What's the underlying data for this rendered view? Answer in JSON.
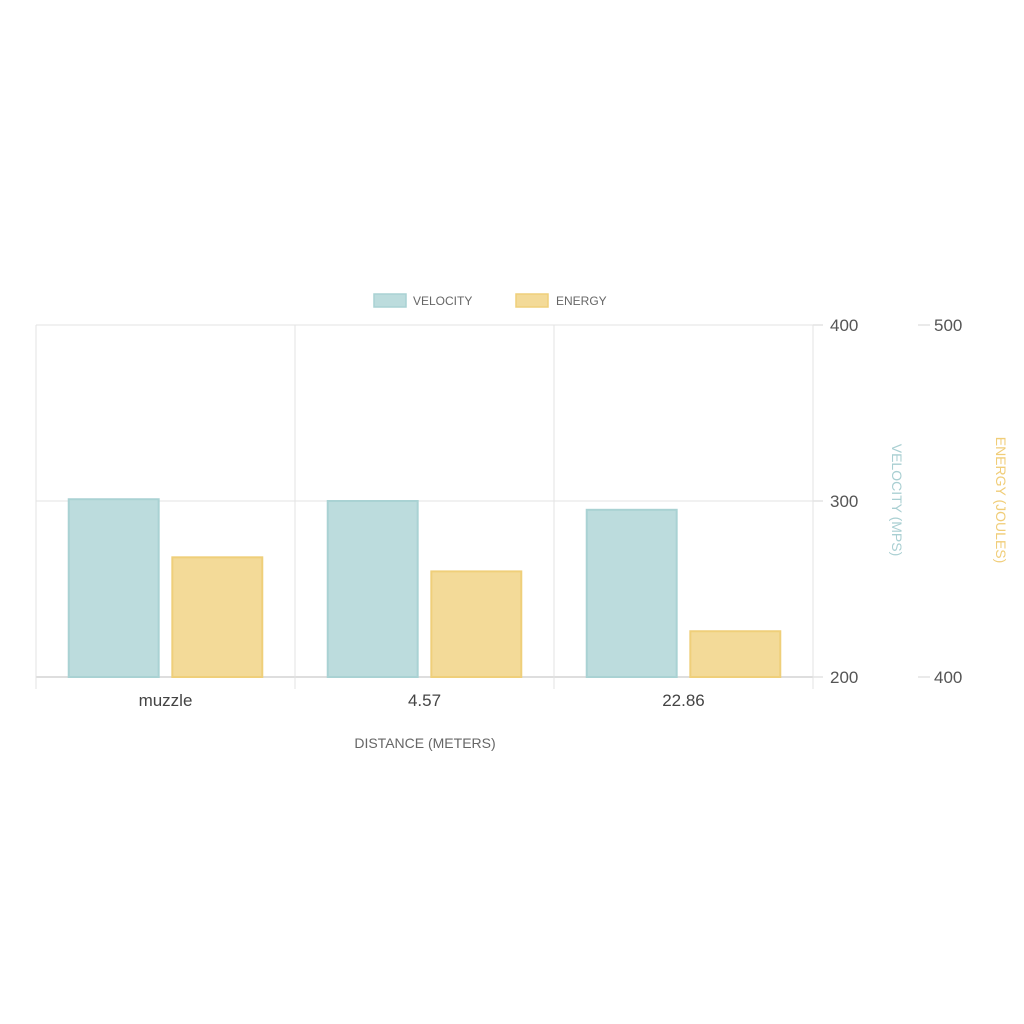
{
  "chart_data": {
    "type": "bar",
    "categories": [
      "muzzle",
      "4.57",
      "22.86"
    ],
    "series": [
      {
        "name": "VELOCITY",
        "axis": "left",
        "values": [
          301,
          300,
          295
        ],
        "color": "#bcdcdd",
        "stroke": "#a9d2d3"
      },
      {
        "name": "ENERGY",
        "axis": "right",
        "values": [
          434,
          430,
          413
        ],
        "color": "#f3da98",
        "stroke": "#efcf7a"
      }
    ],
    "xlabel": "DISTANCE (METERS)",
    "y_left": {
      "label": "VELOCITY (MPS)",
      "range": [
        200,
        400
      ],
      "ticks": [
        "200",
        "300",
        "400"
      ],
      "color": "#a9cfd2"
    },
    "y_right": {
      "label": "ENERGY (JOULES)",
      "range": [
        400,
        500
      ],
      "ticks": [
        "400",
        "500"
      ],
      "color": "#f0cd78"
    },
    "legend": {
      "placement": "top-center",
      "items": [
        "VELOCITY",
        "ENERGY"
      ]
    },
    "grid": true
  }
}
